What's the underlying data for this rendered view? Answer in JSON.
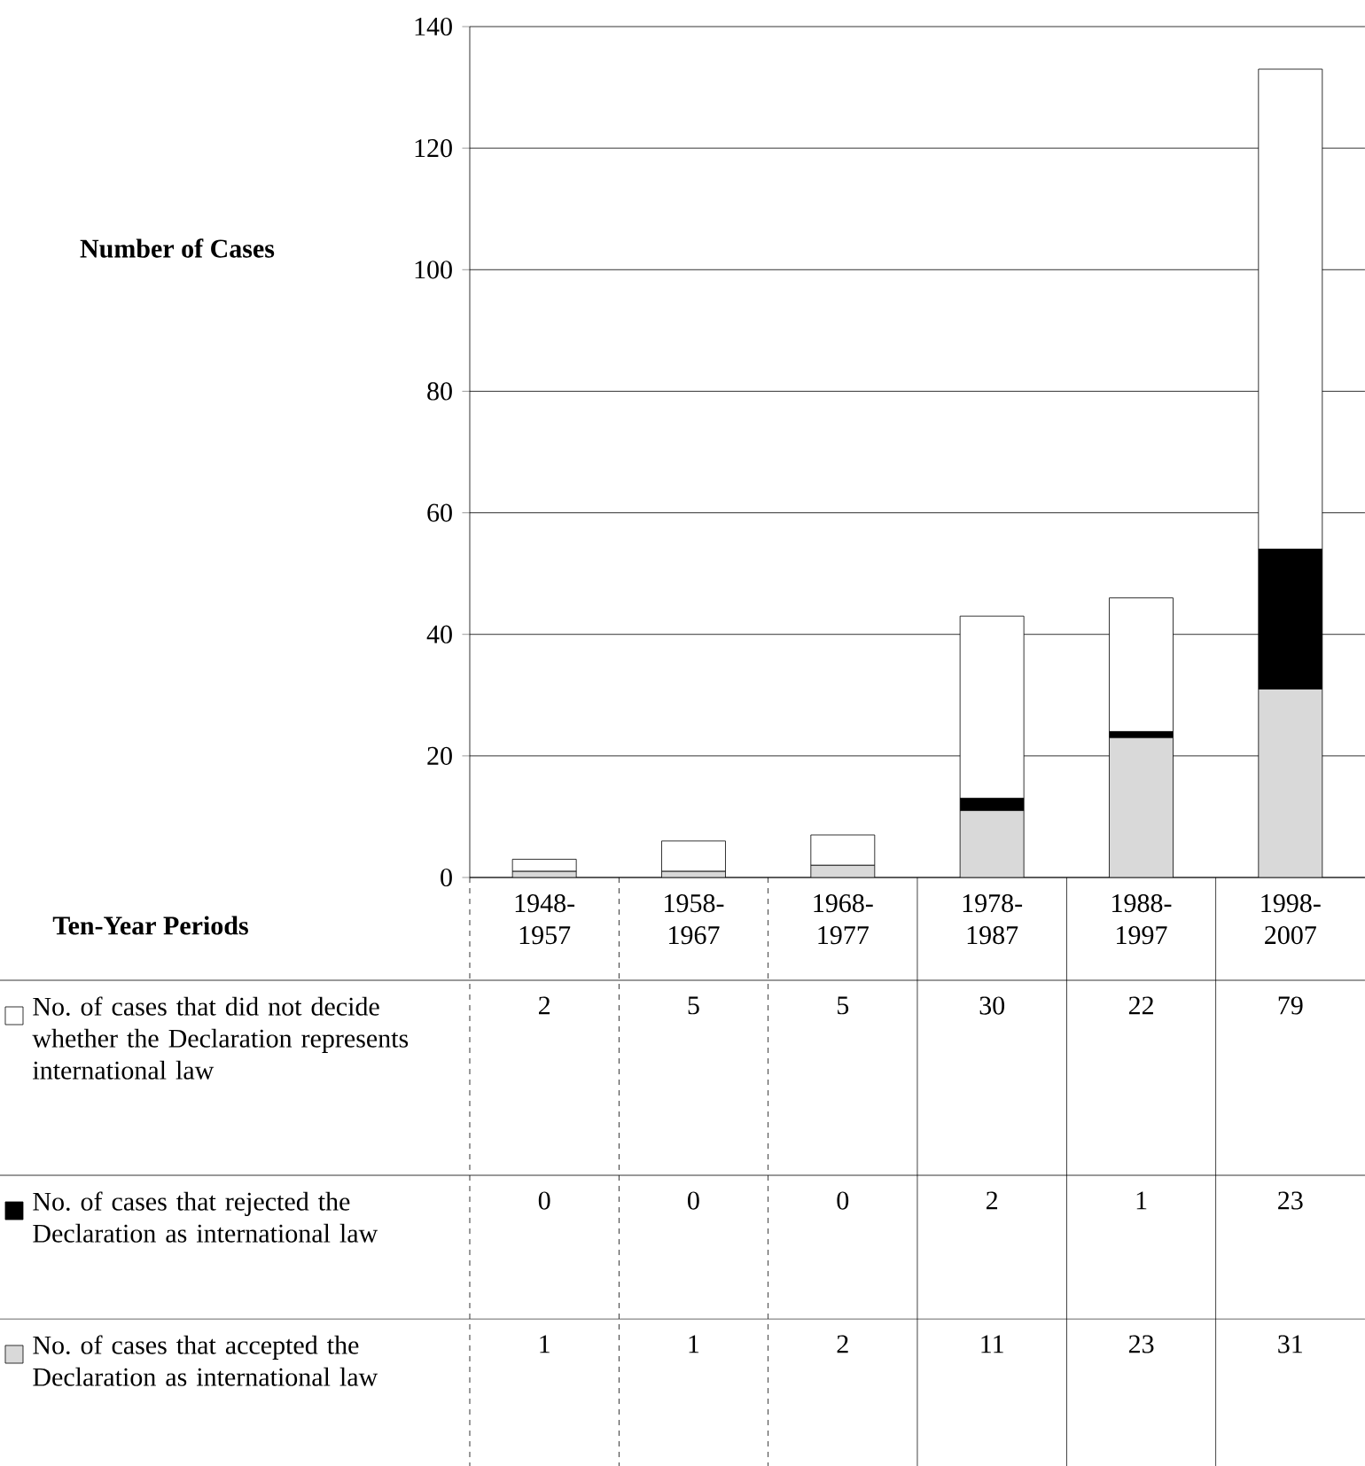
{
  "chart_data": {
    "type": "bar",
    "stacked": true,
    "annotations": [
      "Number of Cases",
      "Ten-Year Periods"
    ],
    "legend": "bottom left",
    "categories": [
      "1948-1957",
      "1958-1967",
      "1968-1977",
      "1978-1987",
      "1988-1997",
      "1998-2007"
    ],
    "series": [
      {
        "name": "No. of cases that accepted the Declaration as international law",
        "color": "#d9d9d9",
        "values": [
          1,
          1,
          2,
          11,
          23,
          31
        ]
      },
      {
        "name": "No. of cases that rejected the Declaration as international law",
        "color": "#000000",
        "values": [
          0,
          0,
          0,
          2,
          1,
          23
        ]
      },
      {
        "name": "No. of cases that did not decide whether the Declaration represents international law",
        "color": "#ffffff",
        "values": [
          2,
          5,
          5,
          30,
          22,
          79
        ]
      }
    ],
    "ylim": [
      0,
      140
    ],
    "yticks": [
      0,
      20,
      40,
      60,
      80,
      100,
      120,
      140
    ],
    "grid": "y",
    "data_labels": true
  }
}
